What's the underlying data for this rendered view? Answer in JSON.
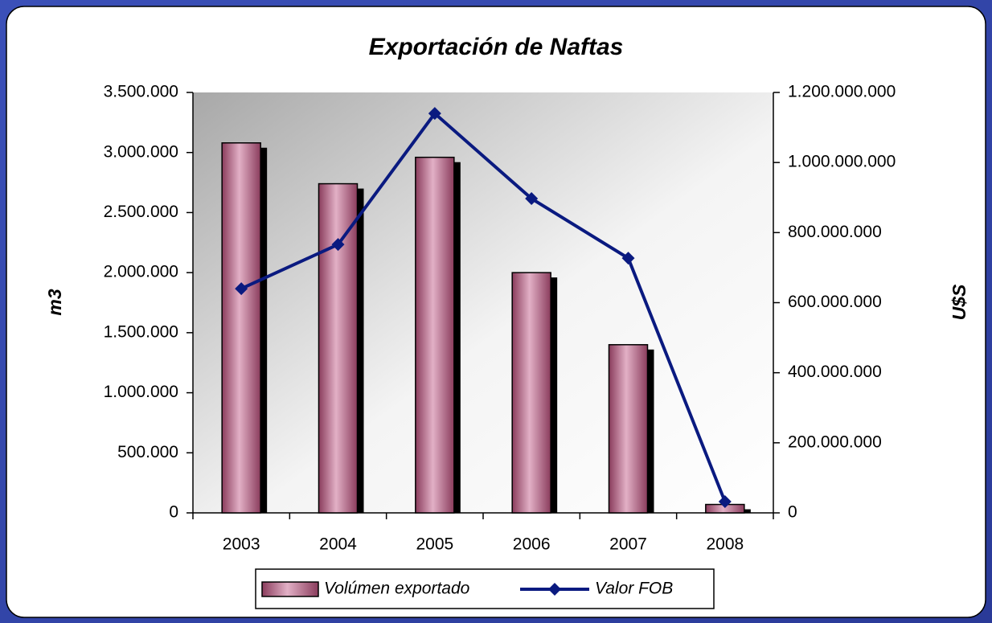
{
  "chart_data": {
    "type": "bar",
    "title": "Exportación de Naftas",
    "y_label": "m3",
    "y2_label": "U$S",
    "categories": [
      "2003",
      "2004",
      "2005",
      "2006",
      "2007",
      "2008"
    ],
    "series": [
      {
        "name": "Volúmen exportado",
        "type": "bar",
        "color": "#b0607f",
        "values": [
          3080000,
          2740000,
          2960000,
          2000000,
          1400000,
          70000
        ]
      },
      {
        "name": "Valor FOB",
        "type": "line",
        "axis": "y2",
        "color": "#0a1a80",
        "values": [
          640000000,
          766000000,
          1140000000,
          897000000,
          727000000,
          32000000
        ]
      }
    ],
    "ylim": [
      0,
      3500000
    ],
    "yticks": [
      0,
      {
        "value": 500000,
        "label": "500.000"
      },
      {
        "value": 1000000,
        "label": "1.000.000"
      },
      {
        "value": 1500000,
        "label": "1.500.000"
      },
      {
        "value": 2000000,
        "label": "2.000.000"
      },
      {
        "value": 2500000,
        "label": "2.500.000"
      },
      {
        "value": 3000000,
        "label": "3.000.000"
      },
      {
        "value": 3500000,
        "label": "3.500.000"
      }
    ],
    "y2lim": [
      0,
      1200000000
    ],
    "y2ticks": [
      0,
      {
        "value": 200000000,
        "label": "200.000.000"
      },
      {
        "value": 400000000,
        "label": "400.000.000"
      },
      {
        "value": 600000000,
        "label": "600.000.000"
      },
      {
        "value": 800000000,
        "label": "800.000.000"
      },
      {
        "value": 1000000000,
        "label": "1.000.000.000"
      },
      {
        "value": 1200000000,
        "label": "1.200.000.000"
      }
    ],
    "legend": "bottom"
  }
}
